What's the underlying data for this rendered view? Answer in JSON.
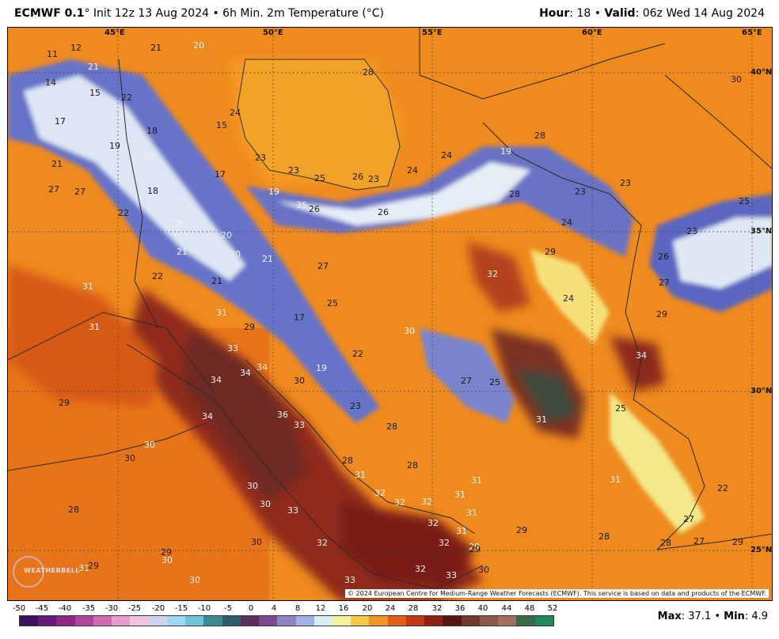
{
  "header": {
    "model": "ECMWF 0.1",
    "degree": "°",
    "init": " Init 12z 13 Aug 2024 • 6h Min. 2m Temperature (°C)",
    "hour_label": "Hour",
    "hour_value": ": 18 • ",
    "valid_label": "Valid",
    "valid_value": ": 06z Wed 14 Aug 2024"
  },
  "grid_labels": {
    "lon_45": "45°E",
    "lon_50": "50°E",
    "lon_55": "55°E",
    "lon_60": "60°E",
    "lon_65": "65°E",
    "lat_40": "40°N",
    "lat_35": "35°N",
    "lat_30": "30°N",
    "lat_25": "25°N"
  },
  "values": [
    "11",
    "12",
    "14",
    "15",
    "17",
    "21",
    "21",
    "22",
    "20",
    "18",
    "19",
    "20",
    "21",
    "27",
    "27",
    "22",
    "18",
    "17",
    "18",
    "21",
    "20",
    "20",
    "21",
    "22",
    "21",
    "24",
    "15",
    "23",
    "23",
    "25",
    "26",
    "23",
    "24",
    "19",
    "26",
    "26",
    "24",
    "19",
    "28",
    "28",
    "23",
    "23",
    "25",
    "24",
    "35",
    "23",
    "26",
    "27",
    "29",
    "29",
    "27",
    "32",
    "24",
    "34",
    "31",
    "31",
    "29",
    "31",
    "33",
    "34",
    "34",
    "34",
    "30",
    "19",
    "22",
    "17",
    "25",
    "30",
    "27",
    "25",
    "23",
    "31",
    "25",
    "34",
    "36",
    "33",
    "28",
    "30",
    "30",
    "28",
    "22",
    "27",
    "28",
    "31",
    "31",
    "32",
    "32",
    "32",
    "31",
    "31",
    "32",
    "31",
    "33",
    "32",
    "32",
    "29",
    "29",
    "29",
    "28",
    "28",
    "27",
    "28",
    "30",
    "30",
    "33",
    "30",
    "30",
    "29",
    "29",
    "31",
    "30",
    "30",
    "32",
    "33",
    "31",
    "29",
    "29",
    "28",
    "30"
  ],
  "copyright": "© 2024 European Centre for Medium-Range Weather Forecasts (ECMWF). This service is based on data and products of the ECMWF.",
  "logo": "WEATHERBELL",
  "legend": {
    "ticks": [
      "-50",
      "-45",
      "-40",
      "-35",
      "-30",
      "-25",
      "-20",
      "-15",
      "-10",
      "-5",
      "0",
      "4",
      "8",
      "12",
      "16",
      "20",
      "24",
      "28",
      "32",
      "36",
      "40",
      "44",
      "48",
      "52"
    ],
    "colors": [
      "#3d1060",
      "#6a1a7a",
      "#8e2a86",
      "#b0459a",
      "#cf6bb0",
      "#e79bc8",
      "#eec5dc",
      "#cfd4ee",
      "#9fd8ee",
      "#6ec4d6",
      "#3c8a8e",
      "#2e5e6a",
      "#5a2f5c",
      "#7d4b8c",
      "#8f84c6",
      "#9fb4e4",
      "#d8eef2",
      "#f6f3a0",
      "#f6c84a",
      "#f09628",
      "#e0601a",
      "#c03a1a",
      "#8f1f18",
      "#5a1414",
      "#6e3a2e",
      "#8a5a4a",
      "#a07060",
      "#3a6a4a",
      "#1e8a5a"
    ],
    "max_label": "Max",
    "max_value": ": 37.1 • ",
    "min_label": "Min",
    "min_value": ": 4.9"
  },
  "colors": {
    "land_orange": "#f08a1c",
    "hot_red": "#a02a1a",
    "mountain_blue": "#5a6cc8",
    "cold_white": "#dfe9f6",
    "border": "#333333"
  }
}
